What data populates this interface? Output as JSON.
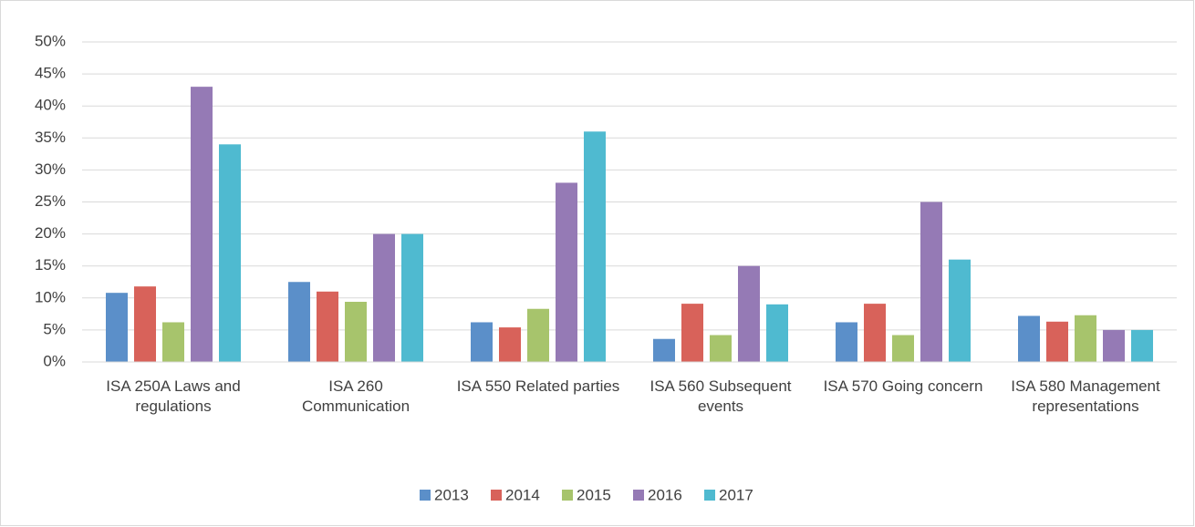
{
  "chart_data": {
    "type": "bar",
    "categories": [
      "ISA 250A Laws and regulations",
      "ISA 260 Communication",
      "ISA 550 Related parties",
      "ISA 560 Subsequent events",
      "ISA 570 Going concern",
      "ISA 580 Management representations"
    ],
    "series": [
      {
        "name": "2013",
        "color": "#5b8fc9",
        "values": [
          10.8,
          12.5,
          6.2,
          3.6,
          6.2,
          7.2
        ]
      },
      {
        "name": "2014",
        "color": "#d8625a",
        "values": [
          11.8,
          11,
          5.4,
          9.1,
          9.1,
          6.3
        ]
      },
      {
        "name": "2015",
        "color": "#a7c46c",
        "values": [
          6.2,
          9.4,
          8.3,
          4.2,
          4.2,
          7.3
        ]
      },
      {
        "name": "2016",
        "color": "#957ab5",
        "values": [
          43,
          20,
          28,
          15,
          25,
          5
        ]
      },
      {
        "name": "2017",
        "color": "#4fbad0",
        "values": [
          34,
          20,
          36,
          9,
          16,
          5
        ]
      }
    ],
    "ylim": [
      0,
      50
    ],
    "yticks": [
      {
        "value": 0,
        "label": "0%"
      },
      {
        "value": 5,
        "label": "5%"
      },
      {
        "value": 10,
        "label": "10%"
      },
      {
        "value": 15,
        "label": "15%"
      },
      {
        "value": 20,
        "label": "20%"
      },
      {
        "value": 25,
        "label": "25%"
      },
      {
        "value": 30,
        "label": "30%"
      },
      {
        "value": 35,
        "label": "35%"
      },
      {
        "value": 40,
        "label": "40%"
      },
      {
        "value": 45,
        "label": "45%"
      },
      {
        "value": 50,
        "label": "50%"
      }
    ],
    "grid": true,
    "legend": "bottom"
  }
}
